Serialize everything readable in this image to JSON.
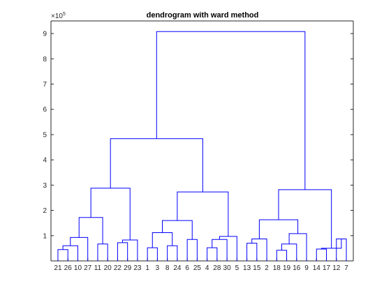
{
  "chart_data": {
    "type": "dendrogram",
    "title": "dendrogram with ward method",
    "xlabel": "",
    "ylabel": "",
    "ylim": [
      0,
      950000
    ],
    "y_ticks": [
      100000,
      200000,
      300000,
      400000,
      500000,
      600000,
      700000,
      800000,
      900000
    ],
    "y_tick_labels": [
      "1",
      "2",
      "3",
      "4",
      "5",
      "6",
      "7",
      "8",
      "9"
    ],
    "y_exponent": {
      "base": "×10",
      "power": "5"
    },
    "leaf_order": [
      21,
      26,
      10,
      27,
      11,
      20,
      22,
      29,
      23,
      1,
      3,
      8,
      24,
      6,
      25,
      4,
      28,
      30,
      5,
      13,
      15,
      2,
      18,
      19,
      16,
      9,
      14,
      17,
      12,
      7
    ],
    "leaf_labels": [
      "21",
      "26",
      "10",
      "27",
      "11",
      "20",
      "22",
      "29",
      "23",
      "1",
      "3",
      "8",
      "24",
      "6",
      "25",
      "4",
      "28",
      "30",
      "5",
      "13",
      "15",
      "2",
      "18",
      "19",
      "16",
      "9",
      "14",
      "17",
      "12",
      "7"
    ],
    "merges": [
      {
        "id": "a1",
        "left": "21",
        "right": "26",
        "height": 45000
      },
      {
        "id": "a2",
        "left": "a1",
        "right": "10",
        "height": 60000
      },
      {
        "id": "a3",
        "left": "a2",
        "right": "27",
        "height": 93000
      },
      {
        "id": "a4",
        "left": "11",
        "right": "20",
        "height": 67000
      },
      {
        "id": "a5",
        "left": "a3",
        "right": "a4",
        "height": 172000
      },
      {
        "id": "a6",
        "left": "22",
        "right": "29",
        "height": 72000
      },
      {
        "id": "a7",
        "left": "a6",
        "right": "23",
        "height": 83000
      },
      {
        "id": "A",
        "left": "a5",
        "right": "a7",
        "height": 288000
      },
      {
        "id": "b1",
        "left": "1",
        "right": "3",
        "height": 52000
      },
      {
        "id": "b2",
        "left": "8",
        "right": "24",
        "height": 60000
      },
      {
        "id": "b3",
        "left": "b1",
        "right": "b2",
        "height": 112000
      },
      {
        "id": "b4",
        "left": "6",
        "right": "25",
        "height": 85000
      },
      {
        "id": "b5",
        "left": "b3",
        "right": "b4",
        "height": 160000
      },
      {
        "id": "b6",
        "left": "4",
        "right": "28",
        "height": 52000
      },
      {
        "id": "b7",
        "left": "b6",
        "right": "30",
        "height": 85000
      },
      {
        "id": "b8",
        "left": "b7",
        "right": "5",
        "height": 97000
      },
      {
        "id": "B",
        "left": "b5",
        "right": "b8",
        "height": 273000
      },
      {
        "id": "AB",
        "left": "A",
        "right": "B",
        "height": 484000
      },
      {
        "id": "c1",
        "left": "13",
        "right": "15",
        "height": 70000
      },
      {
        "id": "c2",
        "left": "c1",
        "right": "2",
        "height": 87000
      },
      {
        "id": "c3",
        "left": "18",
        "right": "19",
        "height": 42000
      },
      {
        "id": "c4",
        "left": "c3",
        "right": "16",
        "height": 67000
      },
      {
        "id": "c5",
        "left": "c4",
        "right": "9",
        "height": 108000
      },
      {
        "id": "c6",
        "left": "c2",
        "right": "c5",
        "height": 163000
      },
      {
        "id": "c7",
        "left": "14",
        "right": "17",
        "height": 47000
      },
      {
        "id": "c8",
        "left": "12",
        "right": "7",
        "height": 87000
      },
      {
        "id": "c9",
        "left": "c7",
        "right": "c8",
        "height": 50000
      },
      {
        "id": "C",
        "left": "c6",
        "right": "c9",
        "height": 282000
      },
      {
        "id": "root",
        "left": "AB",
        "right": "C",
        "height": 908000
      }
    ],
    "line_color": "#0000ff",
    "axis_color": "#262626",
    "grid": false,
    "legend": "none"
  }
}
